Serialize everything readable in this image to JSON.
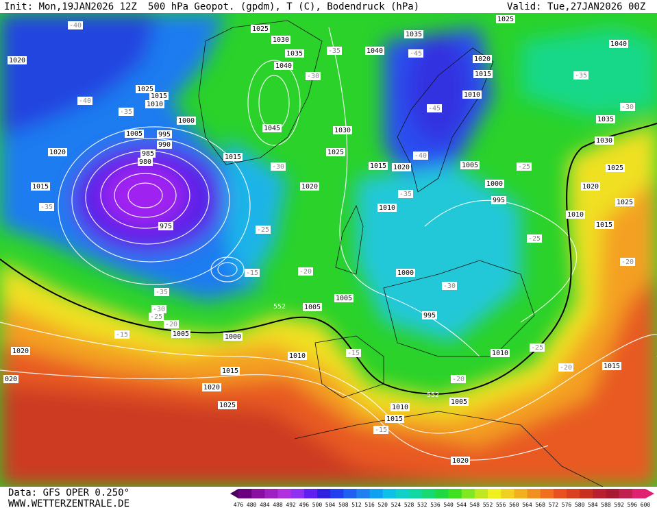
{
  "header": {
    "init": "Init: Mon,19JAN2026 12Z",
    "title": "500 hPa Geopot. (gpdm), T (C), Bodendruck (hPa)",
    "valid": "Valid: Tue,27JAN2026 00Z"
  },
  "footer": {
    "source": "Data: GFS OPER 0.250°",
    "website": "WWW.WETTERZENTRALE.DE"
  },
  "colorbar": {
    "labels": [
      "476",
      "480",
      "484",
      "488",
      "492",
      "496",
      "500",
      "504",
      "508",
      "512",
      "516",
      "520",
      "524",
      "528",
      "532",
      "536",
      "540",
      "544",
      "548",
      "552",
      "556",
      "560",
      "564",
      "568",
      "572",
      "576",
      "580",
      "584",
      "588",
      "592",
      "596",
      "600"
    ]
  },
  "isobar_labels": [
    "1020",
    "1025",
    "1030",
    "1035",
    "1040",
    "1045",
    "1000",
    "995",
    "990",
    "985",
    "980",
    "975",
    "1015",
    "1020",
    "1025",
    "1030",
    "1040",
    "1035",
    "1025",
    "1020",
    "1015",
    "1010",
    "1005",
    "1000",
    "995",
    "1010",
    "1015",
    "1020",
    "1000",
    "995",
    "1005",
    "1005",
    "1010",
    "1015",
    "1020",
    "1025",
    "1000",
    "1005",
    "1020",
    "1010",
    "1005",
    "1010",
    "1015",
    "1020",
    "1015",
    "1010",
    "1015",
    "1025",
    "1020",
    "1025",
    "1030",
    "1035",
    "1040",
    "1015",
    "1020",
    "1005",
    "1010",
    "1015",
    "1025",
    "020"
  ],
  "temperature_labels": [
    "-40",
    "-35",
    "-45",
    "-45",
    "-40",
    "-35",
    "-30",
    "-30",
    "-25",
    "-20",
    "-15",
    "-15",
    "-20",
    "-25",
    "-30",
    "-35",
    "-35",
    "-35",
    "-40",
    "-25",
    "-25",
    "-30",
    "-25",
    "-20",
    "-20",
    "-15",
    "-15",
    "-30",
    "-35",
    "-20"
  ],
  "height_labels": [
    "552",
    "552"
  ]
}
